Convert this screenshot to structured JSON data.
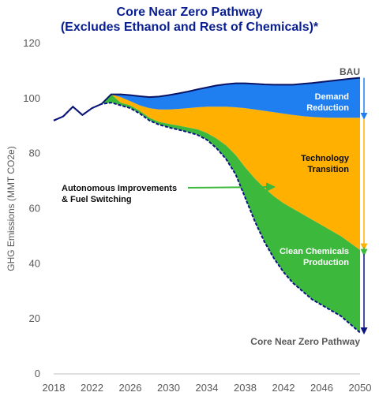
{
  "chart_data": {
    "type": "area",
    "title_line1": "Core Near Zero Pathway",
    "title_line2": "(Excludes Ethanol and Rest of Chemicals)*",
    "xlabel": "",
    "ylabel": "GHG Emissions (MMT CO2e)",
    "xlim": [
      2018,
      2050
    ],
    "ylim": [
      0,
      120
    ],
    "x_ticks": [
      "2018",
      "2022",
      "2026",
      "2030",
      "2034",
      "2038",
      "2042",
      "2046",
      "2050"
    ],
    "y_ticks": [
      "0",
      "20",
      "40",
      "60",
      "80",
      "100",
      "120"
    ],
    "grid": false,
    "legend": "none",
    "x": [
      2018,
      2019,
      2020,
      2021,
      2022,
      2023,
      2024,
      2025,
      2026,
      2027,
      2028,
      2029,
      2030,
      2031,
      2032,
      2033,
      2034,
      2035,
      2036,
      2037,
      2038,
      2039,
      2040,
      2041,
      2042,
      2043,
      2044,
      2045,
      2046,
      2047,
      2048,
      2049,
      2050
    ],
    "series": [
      {
        "name": "BAU",
        "values": [
          92,
          93.5,
          97,
          94,
          96.5,
          98,
          101.5,
          101.5,
          101.2,
          100.8,
          100.5,
          100.7,
          101.2,
          101.8,
          102.5,
          103.3,
          104,
          104.7,
          105.2,
          105.5,
          105.5,
          105.3,
          105.1,
          105,
          105,
          105,
          105.3,
          105.6,
          106,
          106.4,
          106.8,
          107.2,
          107.5
        ]
      },
      {
        "name": "",
        "values": [
          92,
          93.5,
          97,
          94,
          96.5,
          98,
          101.5,
          100.5,
          99,
          97.5,
          96.5,
          96,
          96,
          96.2,
          96.5,
          96.8,
          97,
          97,
          97,
          96.8,
          96.5,
          96,
          95.5,
          95,
          94.5,
          94,
          93.6,
          93.3,
          93.1,
          93,
          93,
          93,
          93
        ]
      },
      {
        "name": "",
        "values": [
          92,
          93.5,
          97,
          94,
          96.5,
          98,
          101.5,
          98.5,
          97.5,
          95.5,
          93,
          91.5,
          90.8,
          90.2,
          89.5,
          88.8,
          87.5,
          85.5,
          83,
          79.5,
          75,
          71,
          67.5,
          64.5,
          62,
          60,
          58,
          56,
          54,
          52,
          50,
          47.5,
          45
        ]
      },
      {
        "name": "Core Near Zero Pathway",
        "values": [
          92,
          93.5,
          97,
          94,
          96.5,
          98,
          98.5,
          97.5,
          96.5,
          94.5,
          92,
          90.5,
          89.5,
          88.7,
          87.8,
          86.8,
          85,
          82,
          78,
          72.5,
          64,
          55.5,
          48,
          42,
          37,
          33,
          30,
          27,
          25,
          23,
          21,
          18,
          15
        ]
      }
    ],
    "annotations": {
      "bau": "BAU",
      "demand_1": "Demand",
      "demand_2": "Reduction",
      "tech_1": "Technology",
      "tech_2": "Transition",
      "auto_1": "Autonomous Improvements",
      "auto_2": "& Fuel Switching",
      "clean_1": "Clean Chemicals",
      "clean_2": "Production",
      "core": "Core Near Zero Pathway"
    },
    "colors": {
      "title": "#0a1f8f",
      "bau_line": "#0a1466",
      "demand": "#1f7ff0",
      "technology": "#ffb000",
      "autonomous": "#3cb83c",
      "clean": "#0a1480",
      "text_grey": "#595959"
    }
  }
}
